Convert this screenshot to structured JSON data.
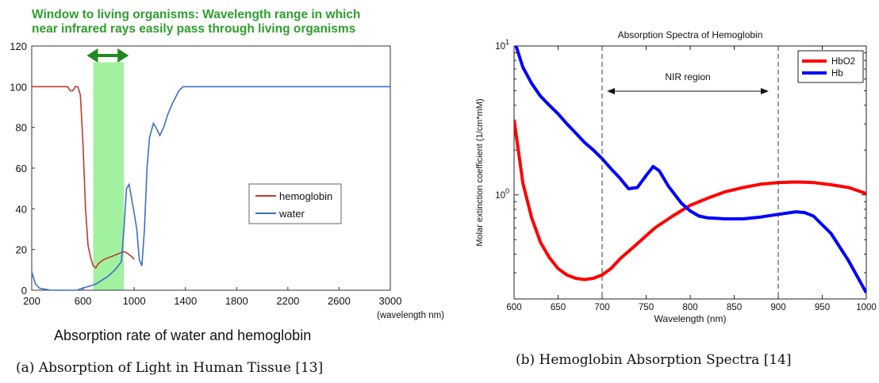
{
  "panel_a": {
    "title_line1": "Window to living organisms: Wavelength range in which",
    "title_line2": "near infrared rays easily pass through living organisms",
    "subtitle": "Absorption rate of water and hemoglobin",
    "caption": "(a) Absorption of Light in Human Tissue [13]"
  },
  "panel_b": {
    "caption": "(b) Hemoglobin Absorption Spectra [14]"
  },
  "chart_data": [
    {
      "type": "line",
      "title": "Window to living organisms: Wavelength range in which near infrared rays easily pass through living organisms",
      "xlabel": "(wavelength nm)",
      "ylabel": "",
      "xlim": [
        200,
        3000
      ],
      "ylim": [
        0,
        120
      ],
      "xticks": [
        200,
        600,
        1000,
        1400,
        1800,
        2200,
        2600,
        3000
      ],
      "yticks": [
        0,
        20,
        40,
        60,
        80,
        100,
        120
      ],
      "legend_position": "center-right",
      "window_region": [
        680,
        920
      ],
      "window_color": "#90ee90",
      "series": [
        {
          "name": "hemoglobin",
          "color": "#c0392b",
          "x": [
            200,
            300,
            400,
            480,
            500,
            520,
            540,
            560,
            580,
            600,
            620,
            640,
            660,
            680,
            700,
            720,
            760,
            800,
            840,
            880,
            920,
            950,
            970,
            990,
            1000
          ],
          "y": [
            100,
            100,
            100,
            100,
            98,
            98,
            100,
            100,
            96,
            72,
            40,
            22,
            16,
            12,
            11,
            13,
            15,
            16,
            17,
            18,
            19,
            18,
            17,
            16,
            15
          ]
        },
        {
          "name": "water",
          "color": "#3c6fc4",
          "x": [
            200,
            230,
            260,
            300,
            350,
            400,
            500,
            550,
            600,
            650,
            700,
            750,
            800,
            850,
            900,
            920,
            940,
            960,
            980,
            1000,
            1020,
            1040,
            1060,
            1080,
            1100,
            1120,
            1150,
            1170,
            1200,
            1230,
            1260,
            1300,
            1350,
            1380,
            1400,
            1600,
            2000,
            2400,
            2800,
            3000
          ],
          "y": [
            9,
            3,
            1,
            0.5,
            0,
            0,
            0,
            0,
            1,
            2,
            3,
            5,
            7,
            10,
            14,
            30,
            50,
            52,
            45,
            38,
            30,
            15,
            12,
            30,
            60,
            75,
            82,
            80,
            76,
            80,
            86,
            92,
            98,
            100,
            100,
            100,
            100,
            100,
            100,
            100
          ]
        }
      ]
    },
    {
      "type": "line",
      "title": "Absorption Spectra of Hemoglobin",
      "xlabel": "Wavelength (nm)",
      "ylabel": "Molar extinction coefficient (1/cm*mM)",
      "xlim": [
        600,
        1000
      ],
      "ylim": [
        0.2,
        10
      ],
      "yscale": "log",
      "xticks": [
        600,
        650,
        700,
        750,
        800,
        850,
        900,
        950,
        1000
      ],
      "yticks": [
        1,
        10
      ],
      "legend_position": "top-right",
      "annotation": {
        "text": "NIR region",
        "from": 700,
        "to": 900
      },
      "vlines": [
        700,
        900
      ],
      "series": [
        {
          "name": "HbO2",
          "color": "#ff0000",
          "x": [
            600,
            610,
            620,
            630,
            640,
            650,
            660,
            670,
            680,
            690,
            700,
            710,
            720,
            740,
            760,
            780,
            800,
            820,
            840,
            860,
            880,
            900,
            920,
            940,
            960,
            980,
            1000
          ],
          "y": [
            3.2,
            1.2,
            0.7,
            0.48,
            0.38,
            0.32,
            0.29,
            0.275,
            0.27,
            0.275,
            0.29,
            0.32,
            0.37,
            0.47,
            0.6,
            0.72,
            0.85,
            0.95,
            1.05,
            1.12,
            1.18,
            1.21,
            1.22,
            1.21,
            1.17,
            1.12,
            1.02
          ]
        },
        {
          "name": "Hb",
          "color": "#0000ff",
          "x": [
            600,
            610,
            620,
            630,
            640,
            650,
            660,
            670,
            680,
            690,
            700,
            710,
            720,
            730,
            740,
            750,
            758,
            765,
            775,
            790,
            800,
            810,
            820,
            840,
            860,
            880,
            900,
            920,
            930,
            940,
            960,
            980,
            1000
          ],
          "y": [
            11,
            7.2,
            5.6,
            4.6,
            4.0,
            3.5,
            3.0,
            2.6,
            2.25,
            2.0,
            1.75,
            1.5,
            1.3,
            1.1,
            1.12,
            1.35,
            1.55,
            1.45,
            1.15,
            0.88,
            0.78,
            0.72,
            0.7,
            0.69,
            0.69,
            0.71,
            0.74,
            0.77,
            0.76,
            0.72,
            0.55,
            0.36,
            0.22
          ]
        }
      ]
    }
  ]
}
